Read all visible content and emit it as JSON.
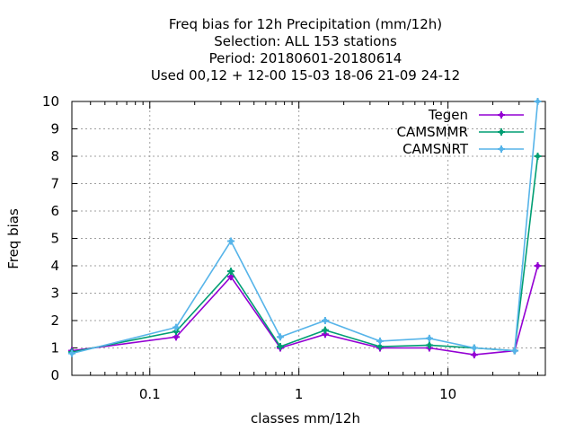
{
  "chart_data": {
    "type": "line",
    "title_lines": [
      "Freq bias  for 12h Precipitation (mm/12h)",
      "Selection: ALL    153 stations",
      "Period: 20180601-20180614",
      "Used  00,12  + 12-00 15-03 18-06 21-09 24-12"
    ],
    "xlabel": "classes mm/12h",
    "ylabel": "Freq bias",
    "x_scale": "log",
    "xlim": [
      0.03,
      45
    ],
    "ylim": [
      0,
      10
    ],
    "x_ticks": [
      {
        "value": 0.1,
        "label": "0.1"
      },
      {
        "value": 1,
        "label": "1"
      },
      {
        "value": 10,
        "label": "10"
      }
    ],
    "y_ticks": [
      0,
      1,
      2,
      3,
      4,
      5,
      6,
      7,
      8,
      9,
      10
    ],
    "grid": true,
    "legend_position": "top-right",
    "x": [
      0.03,
      0.15,
      0.35,
      0.75,
      1.5,
      3.5,
      7.5,
      15,
      28,
      40
    ],
    "series": [
      {
        "name": "Tegen",
        "color": "#9400d3",
        "marker": "plus",
        "values": [
          0.9,
          1.4,
          3.6,
          1.0,
          1.5,
          1.0,
          1.0,
          0.75,
          0.9,
          4.0
        ]
      },
      {
        "name": "CAMSMMR",
        "color": "#009e73",
        "marker": "plus",
        "values": [
          0.85,
          1.6,
          3.8,
          1.05,
          1.65,
          1.05,
          1.1,
          1.0,
          0.9,
          8.0
        ]
      },
      {
        "name": "CAMSNRT",
        "color": "#56b4e9",
        "marker": "plus",
        "values": [
          0.8,
          1.75,
          4.9,
          1.4,
          2.0,
          1.25,
          1.35,
          1.0,
          0.9,
          10.0
        ]
      }
    ]
  }
}
